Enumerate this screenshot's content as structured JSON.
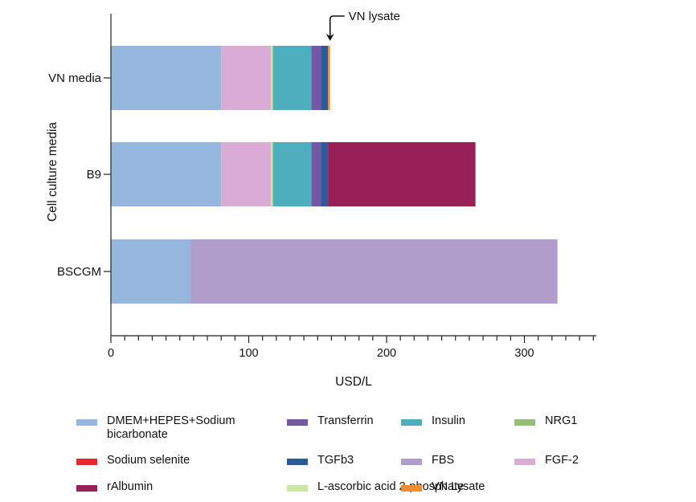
{
  "chart_data": {
    "type": "bar",
    "orientation": "horizontal",
    "stacked": true,
    "categories": [
      "VN media",
      "B9",
      "BSCGM"
    ],
    "xlabel": "USD/L",
    "ylabel": "Cell culture media",
    "xlim": [
      0,
      350
    ],
    "xticks": [
      0,
      100,
      200,
      300
    ],
    "grid": false,
    "legend_position": "bottom",
    "series": [
      {
        "name": "DMEM+HEPES+Sodium\nbicarbonate",
        "color": "#96b7dd",
        "values": [
          80,
          80,
          58
        ]
      },
      {
        "name": "Sodium selenite",
        "color": "#e8262b",
        "values": [
          0,
          0,
          0
        ]
      },
      {
        "name": "rAlbumin",
        "color": "#962057",
        "values": [
          0,
          107,
          0
        ]
      },
      {
        "name": "Transferrin",
        "color": "#7557a5",
        "values": [
          7,
          7,
          0
        ]
      },
      {
        "name": "TGFb3",
        "color": "#2a5b9d",
        "values": [
          5,
          5,
          0
        ]
      },
      {
        "name": "L-ascorbic acid 2-phosphate",
        "color": "#c8e8a2",
        "values": [
          1.5,
          1.5,
          0
        ]
      },
      {
        "name": "Insulin",
        "color": "#4faebe",
        "values": [
          28,
          28,
          0
        ]
      },
      {
        "name": "FBS",
        "color": "#b09dcc",
        "values": [
          0,
          0,
          266
        ]
      },
      {
        "name": "VN Lysate",
        "color": "#ef8e2f",
        "values": [
          1.5,
          0,
          0
        ]
      },
      {
        "name": "NRG1",
        "color": "#94bf77",
        "values": [
          0,
          0,
          0
        ]
      },
      {
        "name": "FGF-2",
        "color": "#d9abd5",
        "values": [
          36,
          36,
          0
        ]
      }
    ],
    "stack_order": [
      "DMEM+HEPES+Sodium\nbicarbonate",
      "FGF-2",
      "L-ascorbic acid 2-phosphate",
      "Insulin",
      "Transferrin",
      "TGFb3",
      "rAlbumin",
      "VN Lysate",
      "FBS"
    ],
    "legend_order": [
      "DMEM+HEPES+Sodium\nbicarbonate",
      "Transferrin",
      "Insulin",
      "NRG1",
      "Sodium selenite",
      "TGFb3",
      "FBS",
      "FGF-2",
      "rAlbumin",
      "L-ascorbic acid 2-phosphate",
      "VN Lysate"
    ],
    "annotations": [
      {
        "text": "VN lysate",
        "category": "VN media",
        "points_to_x": 159
      }
    ]
  }
}
